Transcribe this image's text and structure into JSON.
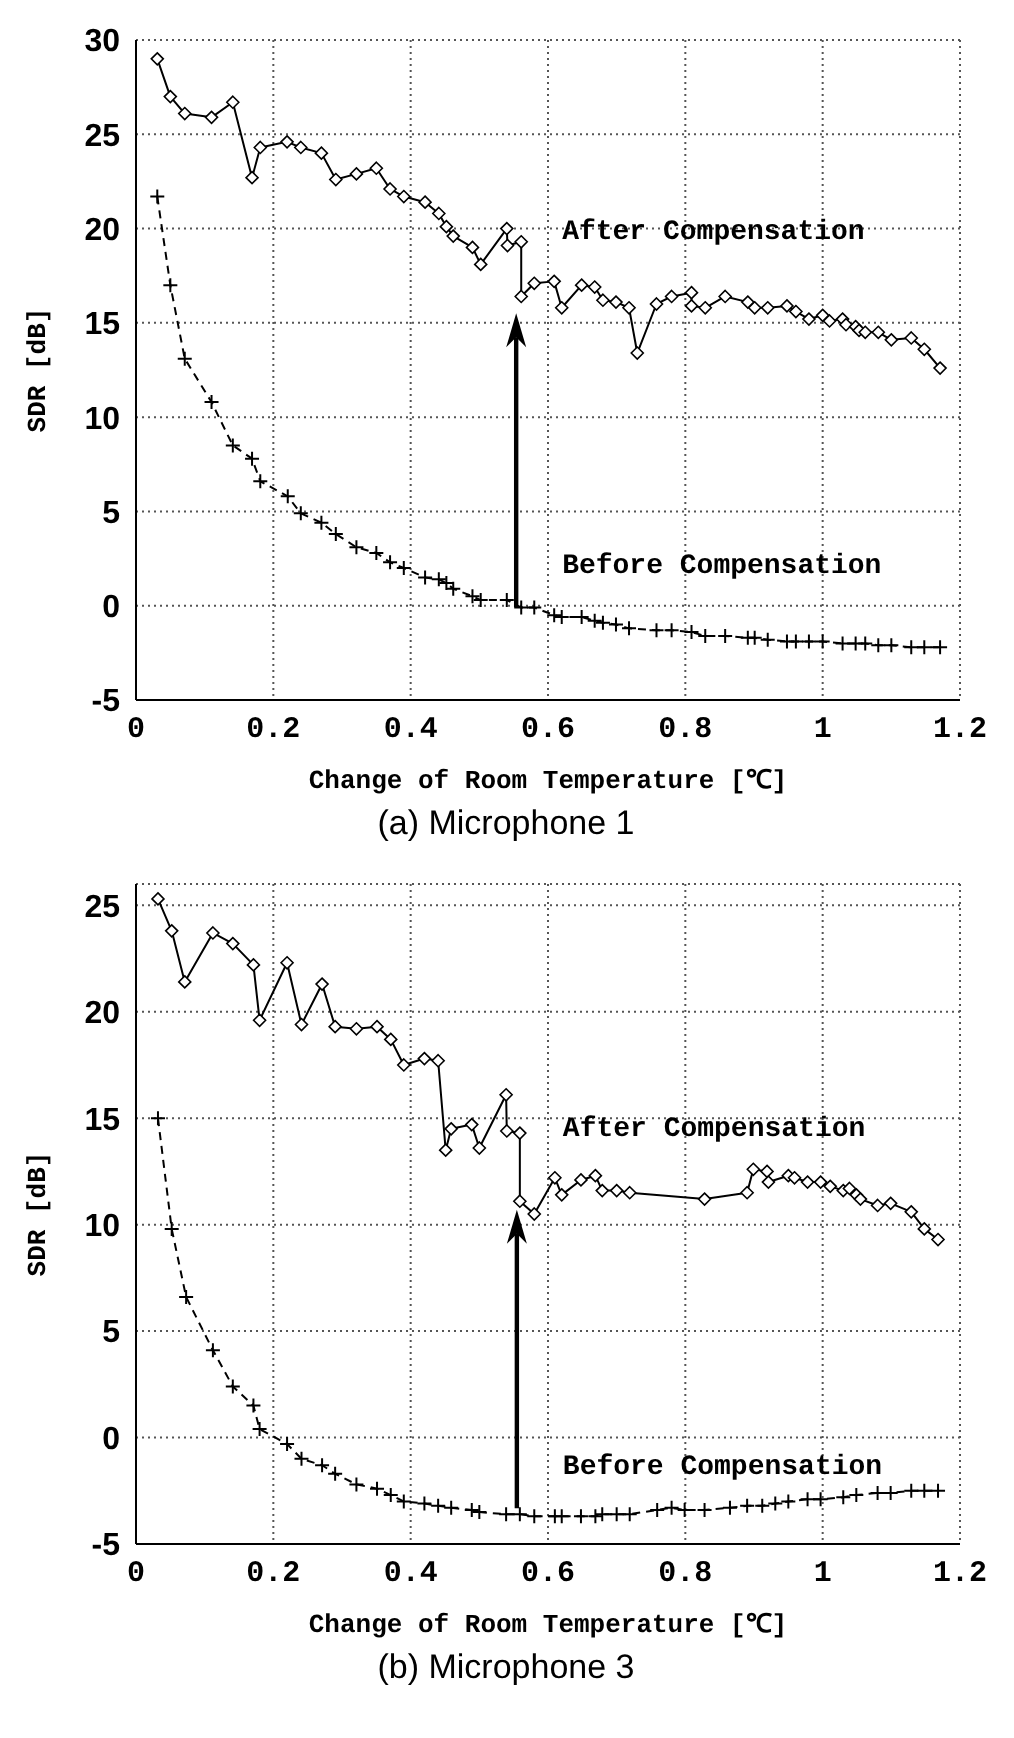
{
  "chart_data": [
    {
      "type": "line",
      "title": "(a) Microphone 1",
      "xlabel": "Change of Room Temperature [℃]",
      "ylabel": "SDR [dB]",
      "xlim": [
        0,
        1.2
      ],
      "xticks": [
        0,
        0.2,
        0.4,
        0.6,
        0.8,
        1,
        1.2
      ],
      "ylim": [
        -5,
        30
      ],
      "yticks": [
        -5,
        0,
        5,
        10,
        15,
        20,
        25,
        30
      ],
      "grid": true,
      "series": [
        {
          "name": "After Compensation",
          "color": "#000000",
          "marker": "diamond",
          "line_style": "solid",
          "x": [
            0.031,
            0.05,
            0.071,
            0.11,
            0.141,
            0.169,
            0.181,
            0.22,
            0.24,
            0.27,
            0.291,
            0.321,
            0.35,
            0.37,
            0.39,
            0.421,
            0.441,
            0.452,
            0.462,
            0.49,
            0.502,
            0.54,
            0.541,
            0.561,
            0.561,
            0.58,
            0.609,
            0.62,
            0.649,
            0.668,
            0.68,
            0.699,
            0.718,
            0.73,
            0.758,
            0.78,
            0.809,
            0.809,
            0.829,
            0.858,
            0.891,
            0.901,
            0.92,
            0.948,
            0.961,
            0.98,
            1.0,
            1.01,
            1.029,
            1.034,
            1.048,
            1.053,
            1.062,
            1.081,
            1.1,
            1.129,
            1.148,
            1.171
          ],
          "values": [
            29.0,
            27.0,
            26.1,
            25.9,
            26.7,
            22.7,
            24.3,
            24.6,
            24.3,
            24.0,
            22.6,
            22.9,
            23.2,
            22.1,
            21.7,
            21.4,
            20.8,
            20.1,
            19.6,
            19.0,
            18.1,
            20.0,
            19.1,
            19.3,
            16.4,
            17.1,
            17.2,
            15.8,
            17.0,
            16.9,
            16.2,
            16.1,
            15.8,
            13.4,
            16.0,
            16.4,
            16.6,
            15.9,
            15.8,
            16.4,
            16.1,
            15.8,
            15.8,
            15.9,
            15.6,
            15.2,
            15.4,
            15.1,
            15.2,
            14.9,
            14.8,
            14.6,
            14.5,
            14.5,
            14.1,
            14.2,
            13.6,
            12.6
          ]
        },
        {
          "name": "Before Compensation",
          "color": "#000000",
          "marker": "cross",
          "line_style": "dashed",
          "x": [
            0.031,
            0.05,
            0.071,
            0.11,
            0.141,
            0.169,
            0.181,
            0.221,
            0.24,
            0.27,
            0.291,
            0.321,
            0.35,
            0.37,
            0.39,
            0.421,
            0.441,
            0.452,
            0.462,
            0.49,
            0.502,
            0.54,
            0.561,
            0.58,
            0.609,
            0.62,
            0.649,
            0.668,
            0.68,
            0.699,
            0.718,
            0.758,
            0.78,
            0.809,
            0.829,
            0.858,
            0.891,
            0.901,
            0.92,
            0.948,
            0.961,
            0.98,
            1.0,
            1.029,
            1.048,
            1.062,
            1.081,
            1.1,
            1.129,
            1.148,
            1.171
          ],
          "values": [
            21.7,
            17.0,
            13.1,
            10.8,
            8.5,
            7.8,
            6.6,
            5.8,
            4.9,
            4.4,
            3.8,
            3.1,
            2.8,
            2.3,
            2.0,
            1.5,
            1.4,
            1.2,
            0.9,
            0.5,
            0.3,
            0.3,
            -0.1,
            -0.1,
            -0.5,
            -0.6,
            -0.6,
            -0.8,
            -0.9,
            -1.0,
            -1.2,
            -1.3,
            -1.3,
            -1.4,
            -1.6,
            -1.6,
            -1.7,
            -1.7,
            -1.8,
            -1.9,
            -1.9,
            -1.9,
            -1.9,
            -2.0,
            -2.0,
            -2.0,
            -2.1,
            -2.1,
            -2.2,
            -2.2,
            -2.2
          ]
        }
      ]
    },
    {
      "type": "line",
      "title": "(b) Microphone 3",
      "xlabel": "Change of Room Temperature [℃]",
      "ylabel": "SDR [dB]",
      "xlim": [
        0,
        1.2
      ],
      "xticks": [
        0,
        0.2,
        0.4,
        0.6,
        0.8,
        1,
        1.2
      ],
      "ylim": [
        -5,
        26
      ],
      "yticks": [
        -5,
        0,
        5,
        10,
        15,
        20,
        25
      ],
      "grid": true,
      "series": [
        {
          "name": "After Compensation",
          "color": "#000000",
          "marker": "diamond",
          "line_style": "solid",
          "x": [
            0.032,
            0.052,
            0.071,
            0.112,
            0.141,
            0.171,
            0.18,
            0.22,
            0.241,
            0.271,
            0.29,
            0.321,
            0.351,
            0.371,
            0.39,
            0.42,
            0.44,
            0.451,
            0.459,
            0.489,
            0.5,
            0.539,
            0.54,
            0.559,
            0.559,
            0.58,
            0.61,
            0.62,
            0.648,
            0.669,
            0.679,
            0.7,
            0.719,
            0.828,
            0.89,
            0.899,
            0.919,
            0.921,
            0.95,
            0.959,
            0.978,
            0.997,
            1.011,
            1.03,
            1.039,
            1.049,
            1.055,
            1.08,
            1.099,
            1.129,
            1.148,
            1.168
          ],
          "values": [
            25.3,
            23.8,
            21.4,
            23.7,
            23.2,
            22.2,
            19.6,
            22.3,
            19.4,
            21.3,
            19.3,
            19.2,
            19.3,
            18.7,
            17.5,
            17.8,
            17.7,
            13.5,
            14.5,
            14.7,
            13.6,
            16.1,
            14.4,
            14.3,
            11.1,
            10.5,
            12.2,
            11.4,
            12.1,
            12.3,
            11.6,
            11.6,
            11.5,
            11.2,
            11.5,
            12.6,
            12.5,
            12.0,
            12.3,
            12.2,
            12.0,
            12.0,
            11.8,
            11.6,
            11.7,
            11.4,
            11.2,
            10.9,
            11.0,
            10.6,
            9.8,
            9.3
          ]
        },
        {
          "name": "Before Compensation",
          "color": "#000000",
          "marker": "cross",
          "line_style": "dashed",
          "x": [
            0.032,
            0.052,
            0.073,
            0.112,
            0.141,
            0.171,
            0.18,
            0.22,
            0.241,
            0.271,
            0.29,
            0.321,
            0.351,
            0.371,
            0.39,
            0.42,
            0.44,
            0.459,
            0.489,
            0.5,
            0.539,
            0.559,
            0.58,
            0.61,
            0.62,
            0.648,
            0.669,
            0.679,
            0.7,
            0.719,
            0.759,
            0.78,
            0.799,
            0.828,
            0.865,
            0.89,
            0.912,
            0.931,
            0.95,
            0.978,
            0.997,
            1.03,
            1.049,
            1.08,
            1.099,
            1.129,
            1.148,
            1.168
          ],
          "values": [
            15.0,
            9.8,
            6.6,
            4.1,
            2.4,
            1.5,
            0.4,
            -0.3,
            -1.0,
            -1.3,
            -1.7,
            -2.2,
            -2.4,
            -2.7,
            -3.0,
            -3.1,
            -3.2,
            -3.3,
            -3.4,
            -3.5,
            -3.6,
            -3.6,
            -3.7,
            -3.7,
            -3.7,
            -3.7,
            -3.7,
            -3.6,
            -3.6,
            -3.6,
            -3.4,
            -3.3,
            -3.4,
            -3.4,
            -3.3,
            -3.2,
            -3.2,
            -3.1,
            -3.0,
            -2.9,
            -2.9,
            -2.8,
            -2.7,
            -2.6,
            -2.6,
            -2.5,
            -2.5,
            -2.5
          ]
        }
      ]
    }
  ]
}
